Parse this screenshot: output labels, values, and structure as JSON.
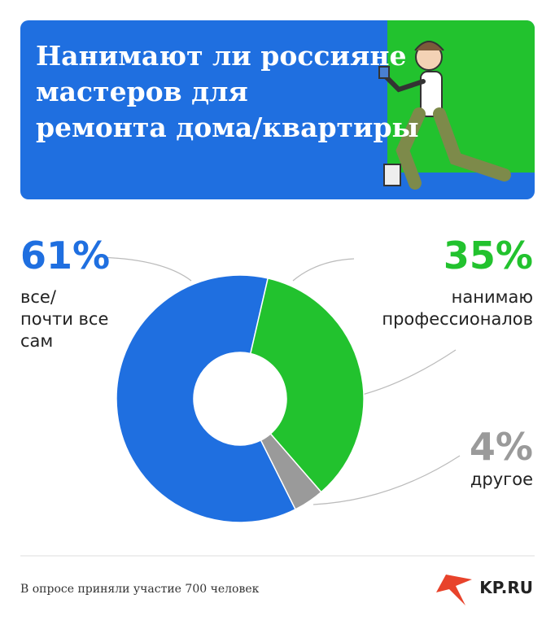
{
  "chart_data": {
    "type": "pie",
    "donut": true,
    "title": "Нанимают ли россияне мастеров для ремонта дома/квартиры",
    "categories": [
      "все/\nпочти все\nсам",
      "нанимаю\nпрофессионалов",
      "другое"
    ],
    "values": [
      61,
      35,
      4
    ],
    "value_labels": [
      "61%",
      "35%",
      "4%"
    ],
    "colors": [
      "#1f6fe0",
      "#22c22e",
      "#9a9a9a"
    ],
    "footnote": "В опросе приняли участие 700 человек",
    "logo": "KP.RU"
  }
}
